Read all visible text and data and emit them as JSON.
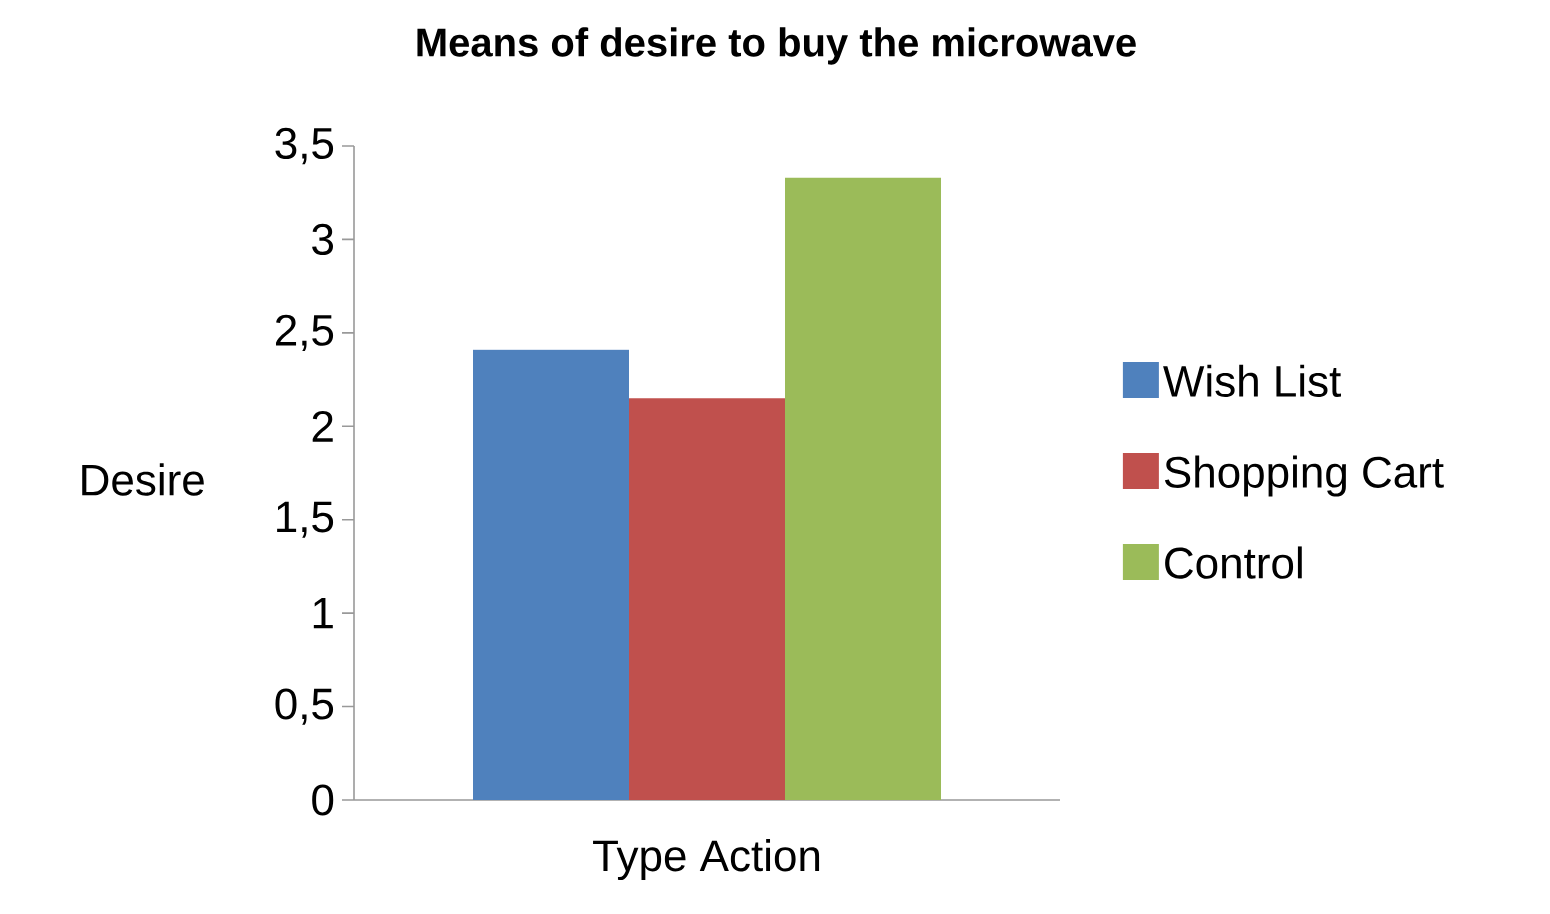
{
  "chart_data": {
    "type": "bar",
    "title": "Means of desire to buy the microwave",
    "xlabel": "Type Action",
    "ylabel": "Desire",
    "categories": [
      null
    ],
    "series": [
      {
        "name": "Wish List",
        "color": "#4f81bd",
        "values": [
          2.41
        ]
      },
      {
        "name": "Shopping Cart",
        "color": "#c0504d",
        "values": [
          2.15
        ]
      },
      {
        "name": "Control",
        "color": "#9bbb59",
        "values": [
          3.33
        ]
      }
    ],
    "ylim": [
      0,
      3.5
    ],
    "yticks": [
      0,
      {
        "value": 0.5,
        "label": "0,5"
      },
      1,
      {
        "value": 1.5,
        "label": "1,5"
      },
      2,
      {
        "value": 2.5,
        "label": "2,5"
      },
      3,
      {
        "value": 3.5,
        "label": "3,5"
      }
    ],
    "grid": false,
    "legend": "right"
  }
}
